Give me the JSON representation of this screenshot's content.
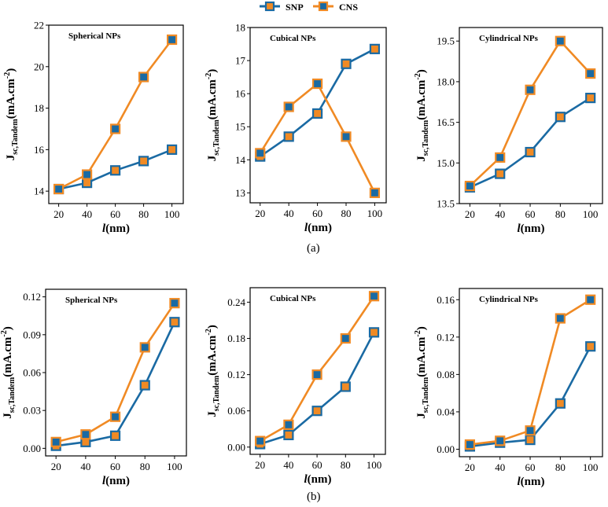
{
  "legend": [
    {
      "name": "SNP",
      "line_color": "#1a6aa3",
      "marker_fill": "#f08a24",
      "marker_edge": "#1a6aa3"
    },
    {
      "name": "CNS",
      "line_color": "#f08a24",
      "marker_fill": "#1a6aa3",
      "marker_edge": "#f08a24"
    }
  ],
  "panel_labels": {
    "a": "(a)",
    "b": "(b)"
  },
  "colors": {
    "snp": "#1a6aa3",
    "cns": "#f08a24"
  },
  "chart_data": [
    {
      "id": "a1",
      "type": "line",
      "title": "Spherical NPs",
      "xlabel": "(nm)",
      "xlabel_italic": "l",
      "ylabel_main": "J",
      "ylabel_sub": "sc,Tandem",
      "ylabel_rest": "(mA.cm",
      "ylabel_sup": "-2",
      "ylabel_close": ")",
      "x": [
        20,
        40,
        60,
        80,
        100
      ],
      "xlim": [
        13,
        108
      ],
      "ylim": [
        13.4,
        22
      ],
      "yticks": [
        14,
        16,
        18,
        20,
        22
      ],
      "ytick_labels": [
        "14",
        "16",
        "18",
        "20",
        "22"
      ],
      "series": [
        {
          "name": "SNP",
          "values": [
            14.1,
            14.4,
            15.0,
            15.45,
            16.0
          ]
        },
        {
          "name": "CNS",
          "values": [
            14.1,
            14.8,
            17.0,
            19.5,
            21.3
          ]
        }
      ]
    },
    {
      "id": "a2",
      "type": "line",
      "title": "Cubical NPs",
      "xlabel": "(nm)",
      "xlabel_italic": "l",
      "ylabel_main": "J",
      "ylabel_sub": "sc,Tandem",
      "ylabel_rest": "(mA.cm",
      "ylabel_sup": "-2",
      "ylabel_close": ")",
      "x": [
        20,
        40,
        60,
        80,
        100
      ],
      "xlim": [
        13,
        108
      ],
      "ylim": [
        12.7,
        18
      ],
      "yticks": [
        13,
        14,
        15,
        16,
        17,
        18
      ],
      "ytick_labels": [
        "13",
        "14",
        "15",
        "16",
        "17",
        "18"
      ],
      "series": [
        {
          "name": "SNP",
          "values": [
            14.1,
            14.7,
            15.4,
            16.9,
            17.35
          ]
        },
        {
          "name": "CNS",
          "values": [
            14.2,
            15.6,
            16.3,
            14.7,
            13.0
          ]
        }
      ]
    },
    {
      "id": "a3",
      "type": "line",
      "title": "Cylindrical NPs",
      "xlabel": "(nm)",
      "xlabel_italic": "l",
      "ylabel_main": "J",
      "ylabel_sub": "sc,Tandem",
      "ylabel_rest": "(mA.cm",
      "ylabel_sup": "-2",
      "ylabel_close": ")",
      "x": [
        20,
        40,
        60,
        80,
        100
      ],
      "xlim": [
        13,
        108
      ],
      "ylim": [
        13.5,
        20
      ],
      "yticks": [
        13.5,
        15.0,
        16.5,
        18.0,
        19.5
      ],
      "ytick_labels": [
        "13.5",
        "15.0",
        "16.5",
        "18.0",
        "19.5"
      ],
      "series": [
        {
          "name": "SNP",
          "values": [
            14.1,
            14.6,
            15.4,
            16.7,
            17.4
          ]
        },
        {
          "name": "CNS",
          "values": [
            14.15,
            15.2,
            17.7,
            19.5,
            18.3
          ]
        }
      ]
    },
    {
      "id": "b1",
      "type": "line",
      "title": "Spherical NPs",
      "xlabel": "(nm)",
      "xlabel_italic": "l",
      "ylabel_main": "J",
      "ylabel_sub": "sc,Tandem",
      "ylabel_rest": "(mA.cm",
      "ylabel_sup": "-2",
      "ylabel_close": ")",
      "x": [
        20,
        40,
        60,
        80,
        100
      ],
      "xlim": [
        13,
        108
      ],
      "ylim": [
        -0.006,
        0.126
      ],
      "yticks": [
        0.0,
        0.03,
        0.06,
        0.09,
        0.12
      ],
      "ytick_labels": [
        "0.00",
        "0.03",
        "0.06",
        "0.09",
        "0.12"
      ],
      "series": [
        {
          "name": "SNP",
          "values": [
            0.002,
            0.005,
            0.01,
            0.05,
            0.1
          ]
        },
        {
          "name": "CNS",
          "values": [
            0.005,
            0.011,
            0.025,
            0.08,
            0.115
          ]
        }
      ]
    },
    {
      "id": "b2",
      "type": "line",
      "title": "Cubical NPs",
      "xlabel": "(nm)",
      "xlabel_italic": "l",
      "ylabel_main": "J",
      "ylabel_sub": "sc,Tandem",
      "ylabel_rest": "(mA.cm",
      "ylabel_sup": "-2",
      "ylabel_close": ")",
      "x": [
        20,
        40,
        60,
        80,
        100
      ],
      "xlim": [
        13,
        108
      ],
      "ylim": [
        -0.012,
        0.264
      ],
      "yticks": [
        0.0,
        0.06,
        0.12,
        0.18,
        0.24
      ],
      "ytick_labels": [
        "0.00",
        "0.06",
        "0.12",
        "0.18",
        "0.24"
      ],
      "series": [
        {
          "name": "SNP",
          "values": [
            0.005,
            0.02,
            0.06,
            0.1,
            0.19
          ]
        },
        {
          "name": "CNS",
          "values": [
            0.01,
            0.037,
            0.12,
            0.18,
            0.25
          ]
        }
      ]
    },
    {
      "id": "b3",
      "type": "line",
      "title": "Cylindrical NPs",
      "xlabel": "(nm)",
      "xlabel_italic": "l",
      "ylabel_main": "J",
      "ylabel_sub": "sc,Tandem",
      "ylabel_rest": "(mA.cm",
      "ylabel_sup": "-2",
      "ylabel_close": ")",
      "x": [
        20,
        40,
        60,
        80,
        100
      ],
      "xlim": [
        13,
        108
      ],
      "ylim": [
        -0.008,
        0.172
      ],
      "yticks": [
        0.0,
        0.04,
        0.08,
        0.12,
        0.16
      ],
      "ytick_labels": [
        "0.00",
        "0.04",
        "0.08",
        "0.12",
        "0.16"
      ],
      "series": [
        {
          "name": "SNP",
          "values": [
            0.003,
            0.007,
            0.01,
            0.049,
            0.11
          ]
        },
        {
          "name": "CNS",
          "values": [
            0.005,
            0.009,
            0.02,
            0.14,
            0.16
          ]
        }
      ]
    }
  ]
}
